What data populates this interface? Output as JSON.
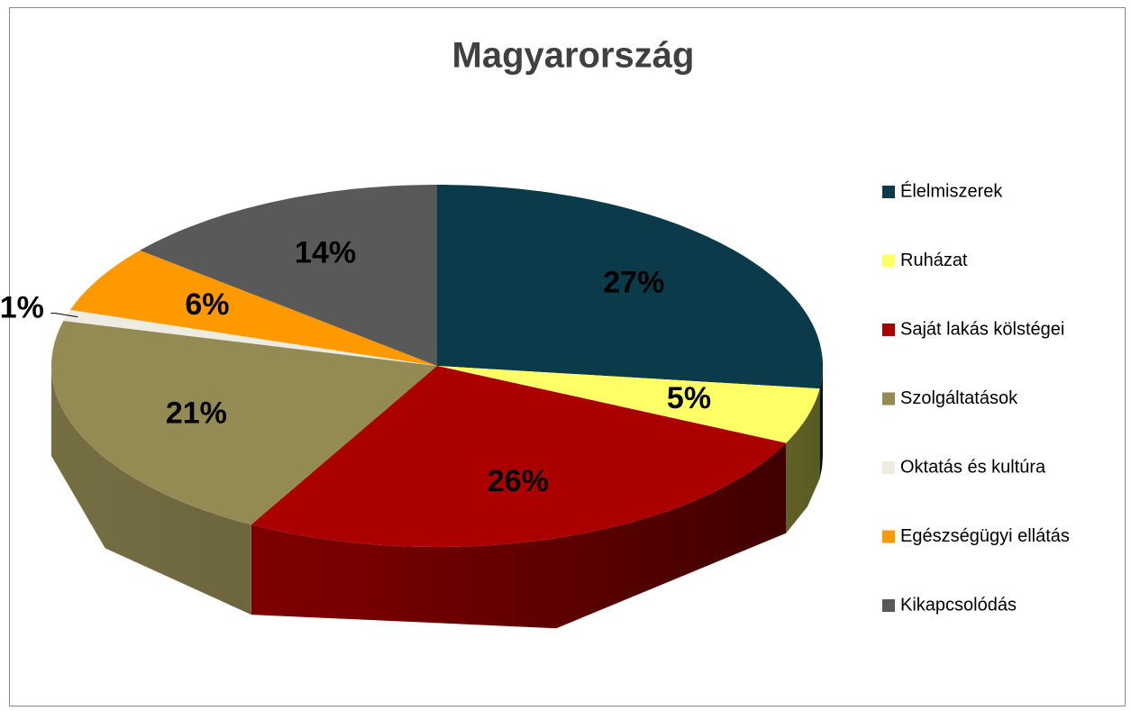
{
  "chart_data": {
    "type": "pie3d",
    "title": "Magyarország",
    "categories": [
      "Élelmiszerek",
      "Ruházat",
      "Saját lakás kölstégei",
      "Szolgáltatások",
      "Oktatás és kultúra",
      "Egészségügyi ellátás",
      "Kikapcsolódás"
    ],
    "values": [
      27,
      5,
      26,
      21,
      1,
      6,
      14
    ],
    "value_labels": [
      "27%",
      "5%",
      "26%",
      "21%",
      "1%",
      "6%",
      "14%"
    ],
    "colors": [
      "#0b3a4a",
      "#ffff66",
      "#aa0000",
      "#948a54",
      "#eeece1",
      "#ff9900",
      "#595959"
    ],
    "legend": "right"
  }
}
